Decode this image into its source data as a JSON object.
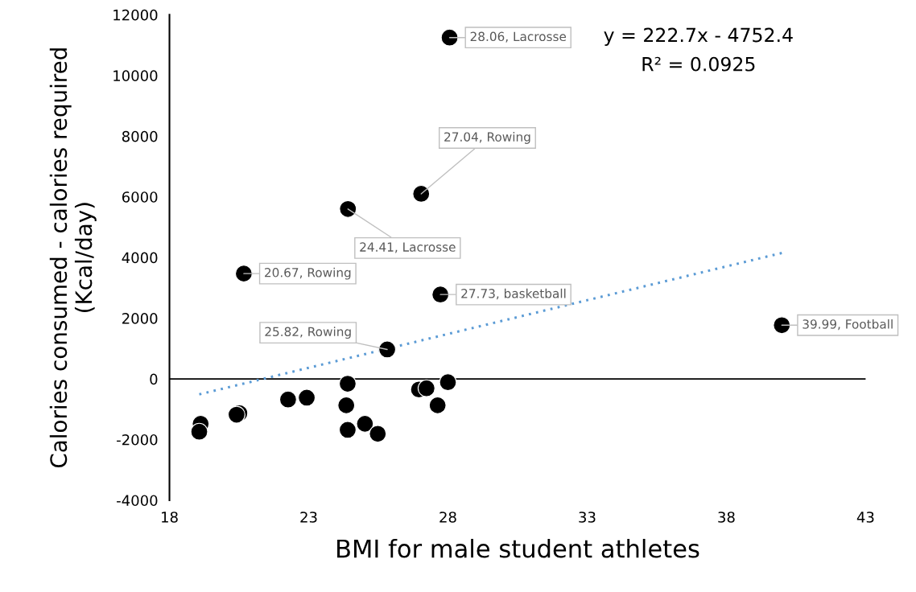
{
  "chart_data": {
    "type": "scatter",
    "xlabel": "BMI for male student athletes",
    "ylabel": "Calories consumed - calories required (Kcal/day)",
    "xlim": [
      18,
      43
    ],
    "xticks": [
      18,
      23,
      28,
      33,
      38,
      43
    ],
    "ylim": [
      -4000,
      12000
    ],
    "yticks": [
      -4000,
      -2000,
      0,
      2000,
      4000,
      6000,
      8000,
      10000,
      12000
    ],
    "grid": false,
    "legend": false,
    "ref_lines": [
      {
        "axis": "y",
        "value": 0,
        "color": "#000000"
      }
    ],
    "series": [
      {
        "marker": "circle",
        "color": "#000000",
        "x": [
          28.06,
          27.04,
          24.41,
          20.67,
          27.73,
          25.82,
          39.99,
          19.12,
          19.07,
          20.51,
          20.41,
          22.26,
          22.93,
          24.4,
          24.35,
          24.4,
          25.02,
          25.48,
          26.96,
          27.23,
          28.0,
          27.63
        ],
        "values": [
          11250,
          6100,
          5600,
          3470,
          2780,
          970,
          1770,
          -1480,
          -1740,
          -1130,
          -1180,
          -680,
          -620,
          -160,
          -870,
          -1680,
          -1480,
          -1810,
          -350,
          -310,
          -110,
          -870
        ]
      },
      {
        "type": "line",
        "color": "#5b9bd5",
        "line_style": "dotted",
        "marker": "none",
        "x": [
          19.07,
          39.99
        ],
        "values": [
          -510,
          4150
        ]
      }
    ],
    "annotations": [
      {
        "text": "28.06, Lacrosse",
        "x": 28.06,
        "y": 11250
      },
      {
        "text": "27.04, Rowing",
        "x": 27.04,
        "y": 6100
      },
      {
        "text": "24.41, Lacrosse",
        "x": 24.41,
        "y": 5600
      },
      {
        "text": "20.67, Rowing",
        "x": 20.67,
        "y": 3470
      },
      {
        "text": "27.73, basketball",
        "x": 27.73,
        "y": 2780
      },
      {
        "text": "25.82, Rowing",
        "x": 25.82,
        "y": 970
      },
      {
        "text": "39.99, Football",
        "x": 39.99,
        "y": 1770
      },
      "y = 222.7x - 4752.4",
      "R² = 0.0925"
    ]
  }
}
